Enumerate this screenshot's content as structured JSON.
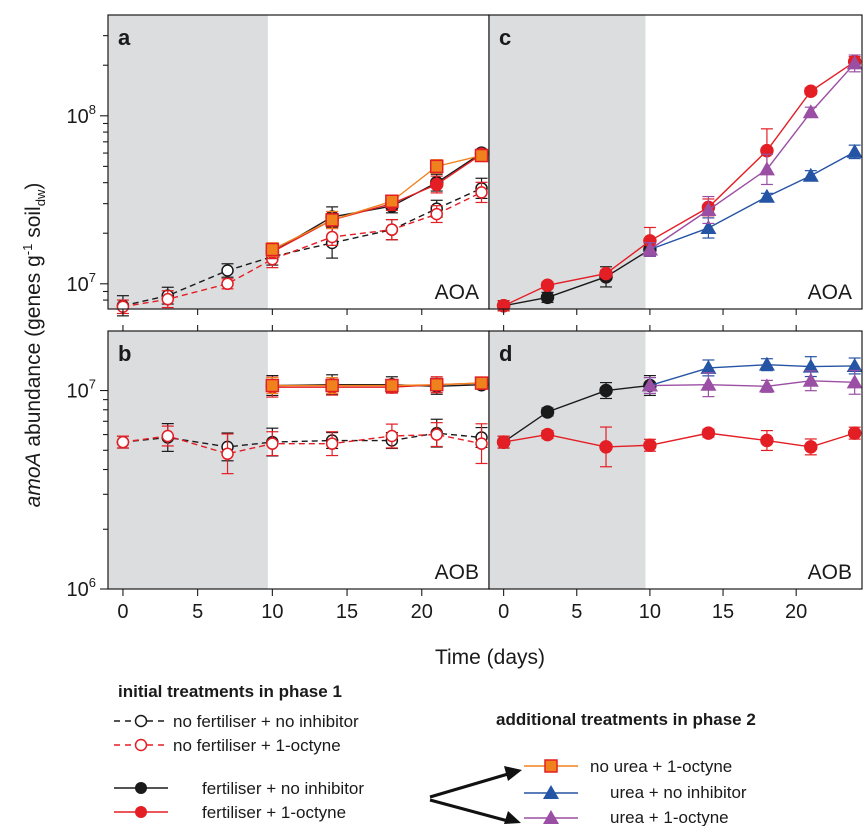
{
  "chart_data": [
    {
      "panel": "a",
      "type": "line",
      "region_label": "AOA",
      "xlim": [
        -1,
        24.5
      ],
      "ylim_log10": [
        6.85,
        8.6
      ],
      "shaded_phase_1_days": [
        -1,
        9.7
      ],
      "series": [
        {
          "key": "nf_ni",
          "x": [
            0,
            3,
            7,
            10,
            14,
            18,
            21,
            24
          ],
          "y": [
            7400000.0,
            8500000.0,
            12000000.0,
            14500000.0,
            17500000.0,
            21000000.0,
            28000000.0,
            37000000.0
          ],
          "err": [
            0.06,
            0.05,
            0.04,
            0.05,
            0.09,
            0.06,
            0.05,
            0.06
          ]
        },
        {
          "key": "nf_oc",
          "x": [
            0,
            3,
            7,
            10,
            14,
            18,
            21,
            24
          ],
          "y": [
            7300000.0,
            8100000.0,
            10000000.0,
            14000000.0,
            19000000.0,
            21000000.0,
            26000000.0,
            35000000.0
          ],
          "err": [
            0.04,
            0.05,
            0.03,
            0.05,
            0.05,
            0.06,
            0.05,
            0.06
          ]
        },
        {
          "key": "f_ni",
          "x": [
            10,
            14,
            18,
            21,
            24
          ],
          "y": [
            15500000.0,
            25000000.0,
            29000000.0,
            40000000.0,
            60000000.0
          ],
          "err": [
            0.04,
            0.06,
            0.04,
            0.05,
            0.02
          ]
        },
        {
          "key": "f_oc",
          "x": [
            10,
            14,
            18,
            21,
            24
          ],
          "y": [
            15500000.0,
            24000000.0,
            30000000.0,
            39000000.0,
            59000000.0
          ],
          "err": [
            0.04,
            0.05,
            0.04,
            0.05,
            0.02
          ]
        },
        {
          "key": "nu_oc",
          "x": [
            10,
            14,
            18,
            21,
            24
          ],
          "y": [
            16000000.0,
            24000000.0,
            31000000.0,
            50000000.0,
            58000000.0
          ],
          "err": [
            0.04,
            0.05,
            0.03,
            0.04,
            0.02
          ]
        }
      ]
    },
    {
      "panel": "c",
      "type": "line",
      "region_label": "AOA",
      "xlim": [
        -1,
        24.5
      ],
      "ylim_log10": [
        6.85,
        8.6
      ],
      "shaded_phase_1_days": [
        -1,
        9.7
      ],
      "series": [
        {
          "key": "f_ni",
          "x": [
            0,
            3,
            7,
            10
          ],
          "y": [
            7400000.0,
            8300000.0,
            11000000.0,
            16000000.0
          ],
          "err": [
            0.03,
            0.03,
            0.06,
            0.04
          ]
        },
        {
          "key": "f_oc",
          "x": [
            0,
            3,
            7,
            10,
            14,
            18,
            21,
            24
          ],
          "y": [
            7400000.0,
            9800000.0,
            11500000.0,
            18000000.0,
            28500000.0,
            62000000.0,
            140000000.0,
            210000000.0
          ],
          "err": [
            0.03,
            0.02,
            0.02,
            0.08,
            0.05,
            0.13,
            0.02,
            0.03
          ]
        },
        {
          "key": "u_ni",
          "x": [
            10,
            14,
            18,
            21,
            24
          ],
          "y": [
            16000000.0,
            21500000.0,
            33000000.0,
            44000000.0,
            61000000.0
          ],
          "err": [
            0.04,
            0.06,
            0.02,
            0.03,
            0.04
          ]
        },
        {
          "key": "u_oc",
          "x": [
            10,
            14,
            18,
            21,
            24
          ],
          "y": [
            16000000.0,
            27500000.0,
            48000000.0,
            105000000.0,
            205000000.0
          ],
          "err": [
            0.04,
            0.08,
            0.09,
            0.03,
            0.05
          ]
        }
      ]
    },
    {
      "panel": "b",
      "type": "line",
      "region_label": "AOB",
      "xlim": [
        -1,
        24.5
      ],
      "ylim_log10": [
        6.0,
        7.3
      ],
      "shaded_phase_1_days": [
        -1,
        9.7
      ],
      "series": [
        {
          "key": "nf_ni",
          "x": [
            0,
            3,
            7,
            10,
            14,
            18,
            21,
            24
          ],
          "y": [
            5500000.0,
            5800000.0,
            5200000.0,
            5500000.0,
            5600000.0,
            5600000.0,
            6100000.0,
            5800000.0
          ],
          "err": [
            0.03,
            0.07,
            0.07,
            0.07,
            0.04,
            0.04,
            0.07,
            0.05
          ]
        },
        {
          "key": "nf_oc",
          "x": [
            0,
            3,
            7,
            10,
            14,
            18,
            21,
            24
          ],
          "y": [
            5500000.0,
            5900000.0,
            4800000.0,
            5400000.0,
            5400000.0,
            5900000.0,
            6000000.0,
            5400000.0
          ],
          "err": [
            0.03,
            0.05,
            0.1,
            0.06,
            0.06,
            0.06,
            0.06,
            0.1
          ]
        },
        {
          "key": "f_ni",
          "x": [
            10,
            14,
            18,
            21,
            24
          ],
          "y": [
            10600000.0,
            10700000.0,
            10700000.0,
            10500000.0,
            10700000.0
          ],
          "err": [
            0.05,
            0.05,
            0.04,
            0.04,
            0.02
          ]
        },
        {
          "key": "f_oc",
          "x": [
            10,
            14,
            18,
            21,
            24
          ],
          "y": [
            10400000.0,
            10400000.0,
            10400000.0,
            10700000.0,
            10900000.0
          ],
          "err": [
            0.05,
            0.04,
            0.03,
            0.04,
            0.02
          ]
        },
        {
          "key": "nu_oc",
          "x": [
            10,
            14,
            18,
            21,
            24
          ],
          "y": [
            10600000.0,
            10600000.0,
            10600000.0,
            10700000.0,
            10900000.0
          ],
          "err": [
            0.04,
            0.04,
            0.03,
            0.03,
            0.02
          ]
        }
      ]
    },
    {
      "panel": "d",
      "type": "line",
      "region_label": "AOB",
      "xlim": [
        -1,
        24.5
      ],
      "ylim_log10": [
        6.0,
        7.3
      ],
      "shaded_phase_1_days": [
        -1,
        9.7
      ],
      "series": [
        {
          "key": "f_ni",
          "x": [
            0,
            3,
            7,
            10
          ],
          "y": [
            5500000.0,
            7800000.0,
            10000000.0,
            10600000.0
          ],
          "err": [
            0.03,
            0.02,
            0.04,
            0.05
          ]
        },
        {
          "key": "f_oc",
          "x": [
            0,
            3,
            7,
            10,
            14,
            18,
            21,
            24
          ],
          "y": [
            5500000.0,
            6000000.0,
            5200000.0,
            5300000.0,
            6100000.0,
            5600000.0,
            5200000.0,
            6100000.0
          ],
          "err": [
            0.03,
            0.02,
            0.1,
            0.03,
            0.02,
            0.05,
            0.04,
            0.03
          ]
        },
        {
          "key": "u_ni",
          "x": [
            10,
            14,
            18,
            21,
            24
          ],
          "y": [
            10600000.0,
            13000000.0,
            13500000.0,
            13200000.0,
            13300000.0
          ],
          "err": [
            0.04,
            0.04,
            0.03,
            0.05,
            0.04
          ]
        },
        {
          "key": "u_oc",
          "x": [
            10,
            14,
            18,
            21,
            24
          ],
          "y": [
            10600000.0,
            10700000.0,
            10500000.0,
            11200000.0,
            11000000.0
          ],
          "err": [
            0.04,
            0.06,
            0.03,
            0.05,
            0.06
          ]
        }
      ]
    }
  ],
  "axes": {
    "ylabel_main": "amoA",
    "ylabel_rest": " abundance (genes g",
    "ylabel_sup": "-1",
    "ylabel_soil": " soil",
    "ylabel_sub": "dw",
    "ylabel_close": ")",
    "xlabel": "Time (days)",
    "x_ticks": [
      "0",
      "5",
      "10",
      "15",
      "20"
    ],
    "x_tick_values": [
      0,
      5,
      10,
      15,
      20
    ],
    "y_ticks_top": [
      {
        "base": "10",
        "exp": "7",
        "v": 7
      },
      {
        "base": "10",
        "exp": "8",
        "v": 8
      }
    ],
    "y_ticks_bottom": [
      {
        "base": "10",
        "exp": "6",
        "v": 6
      },
      {
        "base": "10",
        "exp": "7",
        "v": 7
      }
    ]
  },
  "series_styles": {
    "nf_ni": {
      "color": "#1a1a1a",
      "marker": "circle",
      "fill": "#ffffff",
      "dashed": true
    },
    "nf_oc": {
      "color": "#e31e24",
      "marker": "circle",
      "fill": "#ffffff",
      "dashed": true
    },
    "f_ni": {
      "color": "#1a1a1a",
      "marker": "circle",
      "fill": "#1a1a1a",
      "dashed": false
    },
    "f_oc": {
      "color": "#e31e24",
      "marker": "circle",
      "fill": "#e31e24",
      "dashed": false
    },
    "nu_oc": {
      "color": "#f0821e",
      "marker": "square",
      "fill": "#f0821e",
      "edge": "#e31e24",
      "dashed": false
    },
    "u_ni": {
      "color": "#2554a4",
      "marker": "triangle",
      "fill": "#2554a4",
      "dashed": false
    },
    "u_oc": {
      "color": "#9b4fa4",
      "marker": "triangle",
      "fill": "#9b4fa4",
      "dashed": false
    }
  },
  "legend": {
    "phase1_title": "initial treatments in phase 1",
    "phase2_title": "additional treatments in phase 2",
    "nf_ni": "no fertiliser + no inhibitor",
    "nf_oc": "no fertiliser + 1-octyne",
    "f_ni": "fertiliser + no inhibitor",
    "f_oc": "fertiliser + 1-octyne",
    "nu_oc": "no urea + 1-octyne",
    "u_ni": "urea + no inhibitor",
    "u_oc": "urea + 1-octyne"
  }
}
